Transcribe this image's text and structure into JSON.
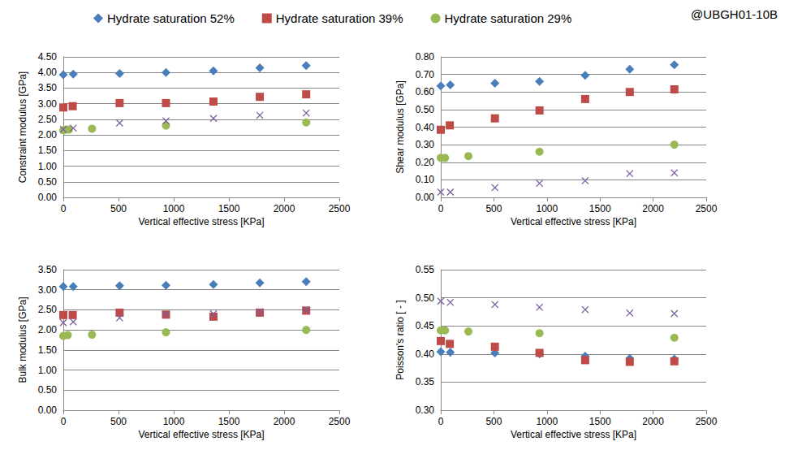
{
  "chart_data": [
    {
      "type": "scatter",
      "xlabel": "Vertical effective stress [KPa]",
      "ylabel": "Constraint modulus [GPa]",
      "annotations": [
        "@UBGH01-10B"
      ],
      "legend": "top",
      "grid": true,
      "xlim": [
        0,
        2500
      ],
      "xticks": [
        0,
        500,
        1000,
        1500,
        2000,
        2500
      ],
      "ylim": [
        0,
        4.5
      ],
      "yticks": [
        {
          "value": 0,
          "label": "0.00"
        },
        {
          "value": 0.5,
          "label": "0.50"
        },
        {
          "value": 1,
          "label": "1.00"
        },
        {
          "value": 1.5,
          "label": "1.50"
        },
        {
          "value": 2,
          "label": "2.00"
        },
        {
          "value": 2.5,
          "label": "2.50"
        },
        {
          "value": 3,
          "label": "3.00"
        },
        {
          "value": 3.5,
          "label": "3.50"
        },
        {
          "value": 4,
          "label": "4.00"
        },
        {
          "value": 4.5,
          "label": "4.50"
        }
      ],
      "series": [
        {
          "name": "Hydrate saturation 52%",
          "color": "#4a7ebb",
          "marker": "diamond",
          "x": [
            0,
            90,
            510,
            930,
            1360,
            1780,
            2200
          ],
          "values": [
            3.93,
            3.95,
            3.97,
            4.0,
            4.05,
            4.15,
            4.22
          ]
        },
        {
          "name": "Hydrate saturation 39%",
          "color": "#be4b48",
          "marker": "square",
          "x": [
            0,
            85,
            510,
            930,
            1360,
            1780,
            2200
          ],
          "values": [
            2.88,
            2.92,
            3.02,
            3.02,
            3.07,
            3.22,
            3.3
          ]
        },
        {
          "name": "Hydrate saturation 29%",
          "color": "#98b954",
          "marker": "circle",
          "x": [
            0,
            25,
            50,
            260,
            930,
            2200
          ],
          "values": [
            2.15,
            2.17,
            2.17,
            2.2,
            2.3,
            2.4
          ]
        },
        {
          "color": "#7d60a0",
          "marker": "x",
          "x": [
            0,
            90,
            510,
            930,
            1360,
            1780,
            2200
          ],
          "values": [
            2.18,
            2.22,
            2.38,
            2.45,
            2.53,
            2.63,
            2.7
          ]
        }
      ]
    },
    {
      "type": "scatter",
      "xlabel": "Vertical effective stress [KPa]",
      "ylabel": "Shear modulus [GPa]",
      "grid": true,
      "xlim": [
        0,
        2500
      ],
      "xticks": [
        0,
        500,
        1000,
        1500,
        2000,
        2500
      ],
      "ylim": [
        0,
        0.8
      ],
      "yticks": [
        {
          "value": 0,
          "label": "0.00"
        },
        {
          "value": 0.1,
          "label": "0.10"
        },
        {
          "value": 0.2,
          "label": "0.20"
        },
        {
          "value": 0.3,
          "label": "0.30"
        },
        {
          "value": 0.4,
          "label": "0.40"
        },
        {
          "value": 0.5,
          "label": "0.50"
        },
        {
          "value": 0.6,
          "label": "0.60"
        },
        {
          "value": 0.7,
          "label": "0.70"
        },
        {
          "value": 0.8,
          "label": "0.80"
        }
      ],
      "series": [
        {
          "name": "Hydrate saturation 52%",
          "color": "#4a7ebb",
          "marker": "diamond",
          "x": [
            0,
            90,
            510,
            930,
            1360,
            1780,
            2200
          ],
          "values": [
            0.635,
            0.64,
            0.65,
            0.66,
            0.695,
            0.73,
            0.755
          ]
        },
        {
          "name": "Hydrate saturation 39%",
          "color": "#be4b48",
          "marker": "square",
          "x": [
            0,
            85,
            510,
            930,
            1360,
            1780,
            2200
          ],
          "values": [
            0.385,
            0.41,
            0.45,
            0.495,
            0.56,
            0.6,
            0.615
          ]
        },
        {
          "name": "Hydrate saturation 29%",
          "color": "#98b954",
          "marker": "circle",
          "x": [
            0,
            40,
            260,
            930,
            2200
          ],
          "values": [
            0.225,
            0.225,
            0.235,
            0.26,
            0.3
          ]
        },
        {
          "color": "#7d60a0",
          "marker": "x",
          "x": [
            0,
            90,
            510,
            930,
            1360,
            1780,
            2200
          ],
          "values": [
            0.03,
            0.03,
            0.055,
            0.08,
            0.095,
            0.135,
            0.14
          ]
        }
      ]
    },
    {
      "type": "scatter",
      "xlabel": "Vertical effective stress [KPa]",
      "ylabel": "Bulk modulus [GPa]",
      "grid": true,
      "xlim": [
        0,
        2500
      ],
      "xticks": [
        0,
        500,
        1000,
        1500,
        2000,
        2500
      ],
      "ylim": [
        0,
        3.5
      ],
      "yticks": [
        {
          "value": 0,
          "label": "0.00"
        },
        {
          "value": 0.5,
          "label": "0.50"
        },
        {
          "value": 1,
          "label": "1.00"
        },
        {
          "value": 1.5,
          "label": "1.50"
        },
        {
          "value": 2,
          "label": "2.00"
        },
        {
          "value": 2.5,
          "label": "2.50"
        },
        {
          "value": 3,
          "label": "3.00"
        },
        {
          "value": 3.5,
          "label": "3.50"
        }
      ],
      "series": [
        {
          "name": "Hydrate saturation 52%",
          "color": "#4a7ebb",
          "marker": "diamond",
          "x": [
            0,
            90,
            510,
            930,
            1360,
            1780,
            2200
          ],
          "values": [
            3.08,
            3.08,
            3.1,
            3.11,
            3.13,
            3.17,
            3.2
          ]
        },
        {
          "name": "Hydrate saturation 39%",
          "color": "#be4b48",
          "marker": "square",
          "x": [
            0,
            85,
            510,
            930,
            1360,
            1780,
            2200
          ],
          "values": [
            2.37,
            2.37,
            2.43,
            2.38,
            2.33,
            2.43,
            2.48
          ]
        },
        {
          "name": "Hydrate saturation 29%",
          "color": "#98b954",
          "marker": "circle",
          "x": [
            0,
            40,
            260,
            930,
            2200
          ],
          "values": [
            1.85,
            1.87,
            1.88,
            1.94,
            2.0
          ]
        },
        {
          "color": "#7d60a0",
          "marker": "x",
          "x": [
            0,
            90,
            510,
            930,
            1360,
            1780,
            2200
          ],
          "values": [
            2.18,
            2.2,
            2.3,
            2.38,
            2.4,
            2.45,
            2.5
          ]
        }
      ]
    },
    {
      "type": "scatter",
      "xlabel": "Vertical effective stress [KPa]",
      "ylabel": "Poisson's ratio [ - ]",
      "grid": true,
      "xlim": [
        0,
        2500
      ],
      "xticks": [
        0,
        500,
        1000,
        1500,
        2000,
        2500
      ],
      "ylim": [
        0.3,
        0.55
      ],
      "yticks": [
        {
          "value": 0.3,
          "label": "0.30"
        },
        {
          "value": 0.35,
          "label": "0.35"
        },
        {
          "value": 0.4,
          "label": "0.40"
        },
        {
          "value": 0.45,
          "label": "0.45"
        },
        {
          "value": 0.5,
          "label": "0.50"
        },
        {
          "value": 0.55,
          "label": "0.55"
        }
      ],
      "series": [
        {
          "name": "Hydrate saturation 52%",
          "color": "#4a7ebb",
          "marker": "diamond",
          "x": [
            0,
            90,
            510,
            930,
            1360,
            1780,
            2200
          ],
          "values": [
            0.404,
            0.403,
            0.402,
            0.4,
            0.396,
            0.392,
            0.391
          ]
        },
        {
          "name": "Hydrate saturation 39%",
          "color": "#be4b48",
          "marker": "square",
          "x": [
            0,
            85,
            510,
            930,
            1360,
            1780,
            2200
          ],
          "values": [
            0.423,
            0.418,
            0.413,
            0.402,
            0.389,
            0.386,
            0.387
          ]
        },
        {
          "name": "Hydrate saturation 29%",
          "color": "#98b954",
          "marker": "circle",
          "x": [
            0,
            40,
            260,
            930,
            2200
          ],
          "values": [
            0.442,
            0.442,
            0.44,
            0.437,
            0.429
          ]
        },
        {
          "color": "#7d60a0",
          "marker": "x",
          "x": [
            0,
            90,
            510,
            930,
            1360,
            1780,
            2200
          ],
          "values": [
            0.494,
            0.492,
            0.488,
            0.483,
            0.479,
            0.473,
            0.472
          ]
        }
      ]
    }
  ]
}
